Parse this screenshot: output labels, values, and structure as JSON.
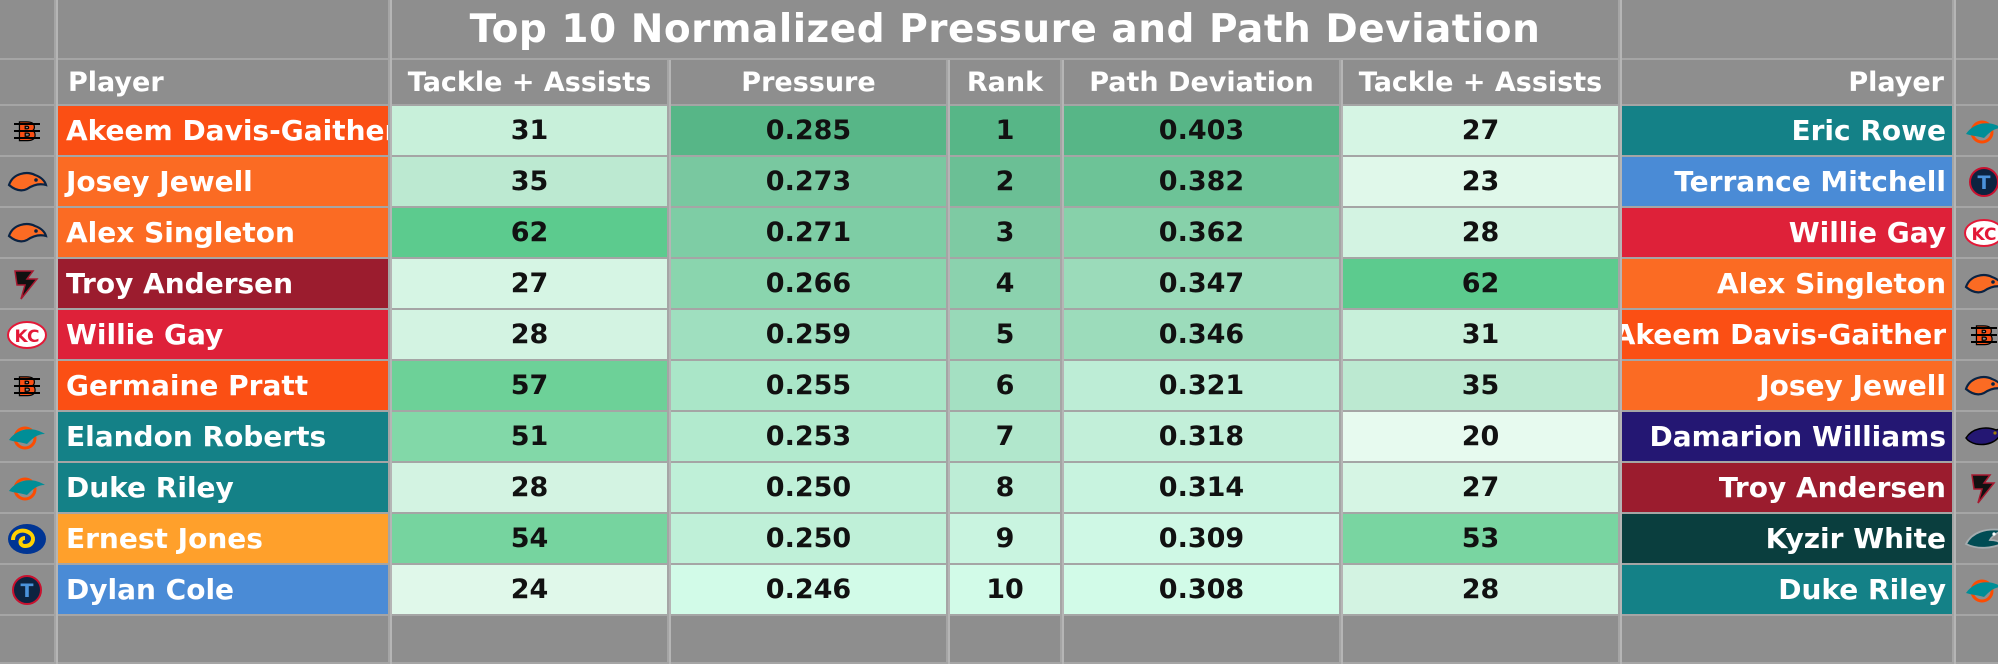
{
  "title": "Top 10 Normalized Pressure and Path Deviation",
  "headers": {
    "player_left": "Player",
    "tackles_left": "Tackle + Assists",
    "pressure": "Pressure",
    "rank": "Rank",
    "path_deviation": "Path Deviation",
    "tackles_right": "Tackle + Assists",
    "player_right": "Player"
  },
  "left_rows": [
    {
      "team_icon": "bengals-logo-icon",
      "team_color": "#fb4f14",
      "player": "Akeem Davis-Gaither",
      "tackles": "31",
      "tackles_bg": "#c8f0da",
      "pressure": "0.285",
      "pressure_bg": "#57b687"
    },
    {
      "team_icon": "broncos-logo-icon",
      "team_color": "#fb6b23",
      "player": "Josey Jewell",
      "tackles": "35",
      "tackles_bg": "#bce9d1",
      "pressure": "0.273",
      "pressure_bg": "#79c8a0"
    },
    {
      "team_icon": "broncos-logo-icon",
      "team_color": "#fb6b23",
      "player": "Alex Singleton",
      "tackles": "62",
      "tackles_bg": "#5ccb8e",
      "pressure": "0.271",
      "pressure_bg": "#7ecda5"
    },
    {
      "team_icon": "falcons-logo-icon",
      "team_color": "#9b1c2e",
      "player": "Troy Andersen",
      "tackles": "27",
      "tackles_bg": "#d6f5e4",
      "pressure": "0.266",
      "pressure_bg": "#8ad5ae"
    },
    {
      "team_icon": "chiefs-logo-icon",
      "team_color": "#de2139",
      "player": "Willie Gay",
      "tackles": "28",
      "tackles_bg": "#d3f3e2",
      "pressure": "0.259",
      "pressure_bg": "#9fdfbf"
    },
    {
      "team_icon": "bengals-logo-icon",
      "team_color": "#fb4f14",
      "player": "Germaine Pratt",
      "tackles": "57",
      "tackles_bg": "#6dd198",
      "pressure": "0.255",
      "pressure_bg": "#aae6c8"
    },
    {
      "team_icon": "dolphins-logo-icon",
      "team_color": "#148187",
      "player": "Elandon Roberts",
      "tackles": "51",
      "tackles_bg": "#82d8a8",
      "pressure": "0.253",
      "pressure_bg": "#b2eace"
    },
    {
      "team_icon": "dolphins-logo-icon",
      "team_color": "#148187",
      "player": "Duke Riley",
      "tackles": "28",
      "tackles_bg": "#d3f3e2",
      "pressure": "0.250",
      "pressure_bg": "#bff0d8"
    },
    {
      "team_icon": "rams-logo-icon",
      "team_color": "#ffa02b",
      "player": "Ernest Jones",
      "tackles": "54",
      "tackles_bg": "#76d49f",
      "pressure": "0.250",
      "pressure_bg": "#bff0d8"
    },
    {
      "team_icon": "titans-logo-icon",
      "team_color": "#4a8bd6",
      "player": "Dylan Cole",
      "tackles": "24",
      "tackles_bg": "#e0f8ea",
      "pressure": "0.246",
      "pressure_bg": "#d2fbe8"
    }
  ],
  "ranks": [
    {
      "rank": "1",
      "bg": "#57b687"
    },
    {
      "rank": "2",
      "bg": "#6bbf95"
    },
    {
      "rank": "3",
      "bg": "#7ecaa3"
    },
    {
      "rank": "4",
      "bg": "#8bd2ae"
    },
    {
      "rank": "5",
      "bg": "#98d9b8"
    },
    {
      "rank": "6",
      "bg": "#a4e0c2"
    },
    {
      "rank": "7",
      "bg": "#b1e7cc"
    },
    {
      "rank": "8",
      "bg": "#bdedd6"
    },
    {
      "rank": "9",
      "bg": "#c9f4e0"
    },
    {
      "rank": "10",
      "bg": "#d2fbe8"
    }
  ],
  "right_rows": [
    {
      "path_deviation": "0.403",
      "path_bg": "#57b687",
      "tackles": "27",
      "tackles_bg": "#d6f5e4",
      "player": "Eric Rowe",
      "team_color": "#148187",
      "team_icon": "dolphins-logo-icon"
    },
    {
      "path_deviation": "0.382",
      "path_bg": "#6dc397",
      "tackles": "23",
      "tackles_bg": "#e0f8ea",
      "player": "Terrance Mitchell",
      "team_color": "#4a8bd6",
      "team_icon": "titans-logo-icon"
    },
    {
      "path_deviation": "0.362",
      "path_bg": "#87d1aa",
      "tackles": "28",
      "tackles_bg": "#d3f3e2",
      "player": "Willie Gay",
      "team_color": "#de2139",
      "team_icon": "chiefs-logo-icon"
    },
    {
      "path_deviation": "0.347",
      "path_bg": "#9bdbba",
      "tackles": "62",
      "tackles_bg": "#5ccb8e",
      "player": "Alex Singleton",
      "team_color": "#fb6b23",
      "team_icon": "broncos-logo-icon"
    },
    {
      "path_deviation": "0.346",
      "path_bg": "#9cdcbb",
      "tackles": "31",
      "tackles_bg": "#c8f0da",
      "player": "Akeem Davis-Gaither",
      "team_color": "#fb4f14",
      "team_icon": "bengals-logo-icon"
    },
    {
      "path_deviation": "0.321",
      "path_bg": "#bdedd6",
      "tackles": "35",
      "tackles_bg": "#bce9d1",
      "player": "Josey Jewell",
      "team_color": "#fb6b23",
      "team_icon": "broncos-logo-icon"
    },
    {
      "path_deviation": "0.318",
      "path_bg": "#c2efd9",
      "tackles": "20",
      "tackles_bg": "#e7faef",
      "player": "Damarion Williams",
      "team_color": "#241773",
      "team_icon": "ravens-logo-icon"
    },
    {
      "path_deviation": "0.314",
      "path_bg": "#c8f3df",
      "tackles": "27",
      "tackles_bg": "#d6f5e4",
      "player": "Troy Andersen",
      "team_color": "#9b1c2e",
      "team_icon": "falcons-logo-icon"
    },
    {
      "path_deviation": "0.309",
      "path_bg": "#cff8e5",
      "tackles": "53",
      "tackles_bg": "#79d5a1",
      "player": "Kyzir White",
      "team_color": "#0a3e3e",
      "team_icon": "eagles-logo-icon"
    },
    {
      "path_deviation": "0.308",
      "path_bg": "#d2fbe8",
      "tackles": "28",
      "tackles_bg": "#d3f3e2",
      "player": "Duke Riley",
      "team_color": "#148187",
      "team_icon": "dolphins-logo-icon"
    }
  ]
}
